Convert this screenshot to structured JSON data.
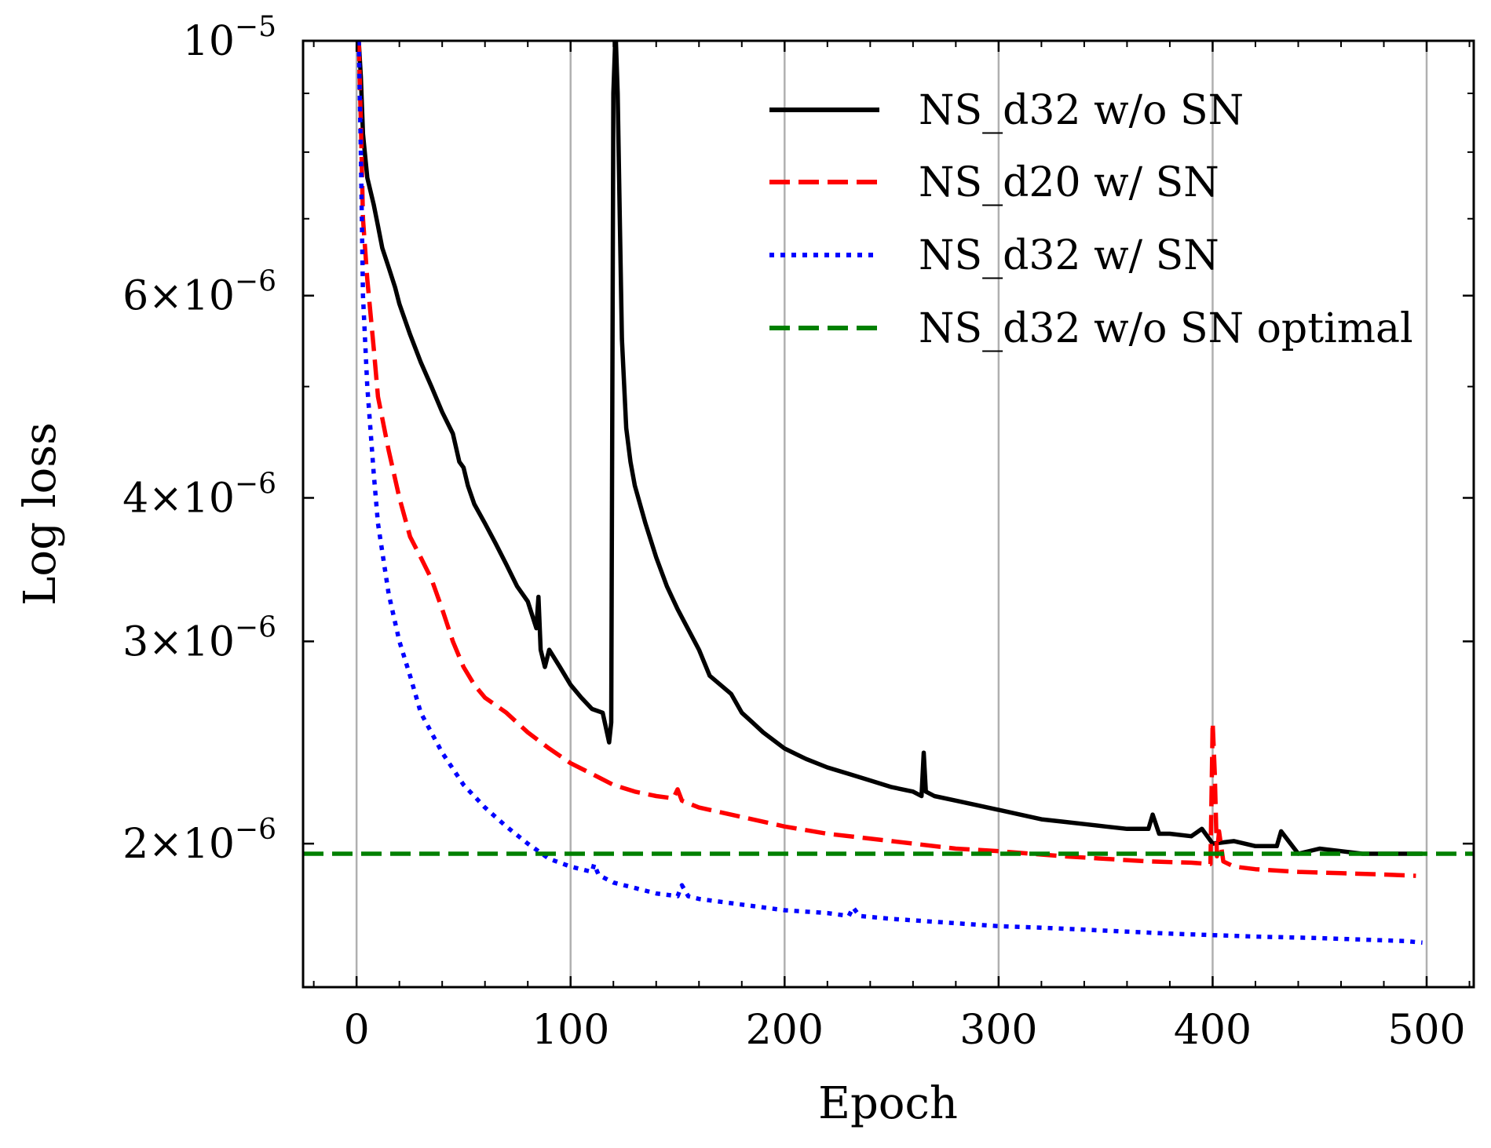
{
  "chart_data": {
    "type": "line",
    "xlabel": "Epoch",
    "ylabel": "Log loss",
    "xlim": [
      -25,
      522
    ],
    "ylim": [
      1.5e-06,
      1e-05
    ],
    "y_scale": "log",
    "grid": "vertical lines at x ticks",
    "legend_position": "top-right",
    "x_ticks": [
      0,
      100,
      200,
      300,
      400,
      500
    ],
    "x_tick_labels": [
      "0",
      "100",
      "200",
      "300",
      "400",
      "500"
    ],
    "y_ticks": [
      {
        "value": 1e-05,
        "mantissa": "",
        "exponent": "10",
        "power": "−5"
      },
      {
        "value": 6e-06,
        "mantissa": "6",
        "exponent": "10",
        "power": "−6"
      },
      {
        "value": 4e-06,
        "mantissa": "4",
        "exponent": "10",
        "power": "−6"
      },
      {
        "value": 3e-06,
        "mantissa": "3",
        "exponent": "10",
        "power": "−6"
      },
      {
        "value": 2e-06,
        "mantissa": "2",
        "exponent": "10",
        "power": "−6"
      }
    ],
    "times_symbol": "×",
    "series": [
      {
        "name": "NS_d32 w/o SN",
        "color": "#000000",
        "style": "solid",
        "x": [
          1,
          2,
          3,
          5,
          8,
          10,
          12,
          15,
          18,
          20,
          25,
          30,
          35,
          40,
          45,
          48,
          50,
          52,
          55,
          60,
          65,
          70,
          75,
          80,
          84,
          85,
          86,
          88,
          90,
          95,
          100,
          105,
          110,
          115,
          118,
          119,
          120,
          121,
          122,
          123,
          124,
          126,
          128,
          130,
          135,
          140,
          145,
          150,
          160,
          165,
          170,
          175,
          180,
          185,
          190,
          200,
          210,
          220,
          230,
          240,
          250,
          260,
          264,
          265,
          266,
          270,
          280,
          290,
          300,
          310,
          320,
          330,
          340,
          350,
          360,
          370,
          372,
          375,
          380,
          390,
          395,
          400,
          410,
          420,
          430,
          432,
          440,
          450,
          460,
          470,
          480,
          490,
          498
        ],
        "values": [
          1e-05,
          9.3e-06,
          8.3e-06,
          7.6e-06,
          7.2e-06,
          6.9e-06,
          6.6e-06,
          6.35e-06,
          6.1e-06,
          5.9e-06,
          5.55e-06,
          5.25e-06,
          5e-06,
          4.75e-06,
          4.55e-06,
          4.3e-06,
          4.25e-06,
          4.1e-06,
          3.95e-06,
          3.8e-06,
          3.65e-06,
          3.5e-06,
          3.35e-06,
          3.25e-06,
          3.08e-06,
          3.28e-06,
          2.95e-06,
          2.85e-06,
          2.95e-06,
          2.85e-06,
          2.75e-06,
          2.68e-06,
          2.62e-06,
          2.6e-06,
          2.45e-06,
          2.55e-06,
          9e-06,
          1.02e-05,
          9e-06,
          7e-06,
          5.5e-06,
          4.6e-06,
          4.3e-06,
          4.1e-06,
          3.8e-06,
          3.55e-06,
          3.35e-06,
          3.2e-06,
          2.95e-06,
          2.8e-06,
          2.75e-06,
          2.7e-06,
          2.6e-06,
          2.55e-06,
          2.5e-06,
          2.42e-06,
          2.37e-06,
          2.33e-06,
          2.3e-06,
          2.27e-06,
          2.24e-06,
          2.22e-06,
          2.2e-06,
          2.4e-06,
          2.22e-06,
          2.2e-06,
          2.18e-06,
          2.16e-06,
          2.14e-06,
          2.12e-06,
          2.1e-06,
          2.09e-06,
          2.08e-06,
          2.07e-06,
          2.06e-06,
          2.06e-06,
          2.12e-06,
          2.04e-06,
          2.04e-06,
          2.03e-06,
          2.06e-06,
          2e-06,
          2.01e-06,
          1.99e-06,
          1.99e-06,
          2.05e-06,
          1.96e-06,
          1.98e-06,
          1.97e-06,
          1.96e-06,
          1.96e-06,
          1.96e-06,
          1.96e-06
        ]
      },
      {
        "name": "NS_d20 w/ SN",
        "color": "#ff0000",
        "style": "dashed",
        "x": [
          1,
          2,
          3,
          5,
          8,
          10,
          15,
          20,
          25,
          30,
          35,
          40,
          45,
          50,
          55,
          60,
          70,
          80,
          90,
          100,
          110,
          120,
          130,
          140,
          148,
          150,
          152,
          160,
          180,
          200,
          220,
          250,
          280,
          300,
          330,
          350,
          370,
          390,
          399,
          400,
          401,
          402,
          403,
          405,
          410,
          420,
          440,
          460,
          480,
          495
        ],
        "values": [
          1e-05,
          8.5e-06,
          7e-06,
          6.2e-06,
          5.4e-06,
          4.9e-06,
          4.4e-06,
          4e-06,
          3.7e-06,
          3.55e-06,
          3.4e-06,
          3.2e-06,
          3e-06,
          2.85e-06,
          2.75e-06,
          2.68e-06,
          2.6e-06,
          2.5e-06,
          2.42e-06,
          2.35e-06,
          2.3e-06,
          2.25e-06,
          2.22e-06,
          2.2e-06,
          2.19e-06,
          2.23e-06,
          2.18e-06,
          2.15e-06,
          2.11e-06,
          2.07e-06,
          2.04e-06,
          2.01e-06,
          1.98e-06,
          1.97e-06,
          1.95e-06,
          1.94e-06,
          1.93e-06,
          1.925e-06,
          1.92e-06,
          2.55e-06,
          2.3e-06,
          1.95e-06,
          2.05e-06,
          1.93e-06,
          1.91e-06,
          1.9e-06,
          1.89e-06,
          1.885e-06,
          1.88e-06,
          1.875e-06
        ]
      },
      {
        "name": "NS_d32 w/ SN",
        "color": "#0000ff",
        "style": "dotted",
        "x": [
          1,
          2,
          3,
          5,
          8,
          10,
          15,
          20,
          25,
          30,
          40,
          50,
          60,
          70,
          80,
          90,
          100,
          110,
          111,
          113,
          115,
          120,
          130,
          140,
          150,
          152,
          155,
          160,
          180,
          200,
          220,
          230,
          232,
          235,
          250,
          270,
          290,
          300,
          320,
          350,
          380,
          400,
          420,
          450,
          470,
          490,
          498
        ],
        "values": [
          1e-05,
          8e-06,
          6e-06,
          5e-06,
          4.2e-06,
          3.8e-06,
          3.3e-06,
          3e-06,
          2.8e-06,
          2.6e-06,
          2.4e-06,
          2.25e-06,
          2.15e-06,
          2.07e-06,
          2e-06,
          1.94e-06,
          1.91e-06,
          1.89e-06,
          1.92e-06,
          1.88e-06,
          1.87e-06,
          1.85e-06,
          1.83e-06,
          1.81e-06,
          1.8e-06,
          1.84e-06,
          1.8e-06,
          1.79e-06,
          1.77e-06,
          1.75e-06,
          1.74e-06,
          1.73e-06,
          1.76e-06,
          1.73e-06,
          1.72e-06,
          1.71e-06,
          1.7e-06,
          1.695e-06,
          1.69e-06,
          1.68e-06,
          1.67e-06,
          1.665e-06,
          1.66e-06,
          1.655e-06,
          1.65e-06,
          1.645e-06,
          1.64e-06
        ]
      },
      {
        "name": "NS_d32 w/o SN optimal",
        "color": "#008000",
        "style": "dashed",
        "x": [
          -25,
          522
        ],
        "values": [
          1.96e-06,
          1.96e-06
        ]
      }
    ]
  }
}
